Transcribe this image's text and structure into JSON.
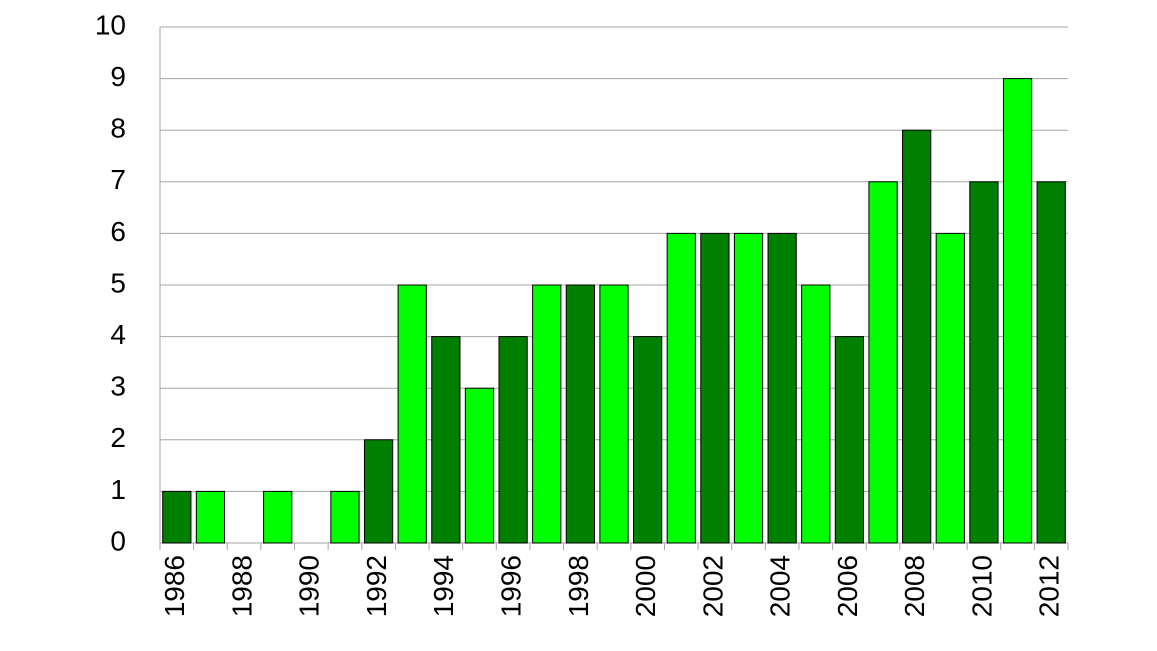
{
  "chart_data": {
    "type": "bar",
    "categories": [
      "1986",
      null,
      "1988",
      null,
      "1990",
      null,
      "1992",
      null,
      "1994",
      null,
      "1996",
      null,
      "1998",
      null,
      "2000",
      null,
      "2002",
      null,
      "2004",
      null,
      "2006",
      null,
      "2008",
      null,
      "2010",
      null,
      "2012"
    ],
    "values": [
      1,
      1,
      0,
      1,
      0,
      1,
      2,
      5,
      4,
      3,
      4,
      5,
      5,
      5,
      4,
      6,
      6,
      6,
      6,
      5,
      4,
      7,
      8,
      6,
      7,
      9,
      7
    ],
    "colors": [
      "#008000",
      "#00ff00",
      "#008000",
      "#00ff00",
      "#008000",
      "#00ff00",
      "#008000",
      "#00ff00",
      "#008000",
      "#00ff00",
      "#008000",
      "#00ff00",
      "#008000",
      "#00ff00",
      "#008000",
      "#00ff00",
      "#008000",
      "#00ff00",
      "#008000",
      "#00ff00",
      "#008000",
      "#00ff00",
      "#008000",
      "#00ff00",
      "#008000",
      "#00ff00",
      "#008000"
    ],
    "ylim": [
      0,
      10
    ],
    "yticks": [
      0,
      1,
      2,
      3,
      4,
      5,
      6,
      7,
      8,
      9,
      10
    ],
    "grid": true
  }
}
